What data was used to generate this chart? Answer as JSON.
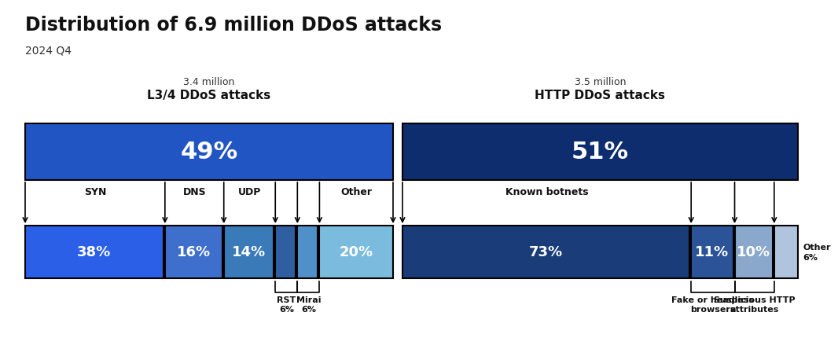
{
  "title": "Distribution of 6.9 million DDoS attacks",
  "subtitle": "2024 Q4",
  "background_color": "#ffffff",
  "left_label_top": "3.4 million",
  "left_label_bottom": "L3/4 DDoS attacks",
  "right_label_top": "3.5 million",
  "right_label_bottom": "HTTP DDoS attacks",
  "top_left_pct": "49%",
  "top_left_color": "#2155c4",
  "top_right_pct": "51%",
  "top_right_color": "#0d2d6e",
  "left_segments": [
    {
      "label": "SYN",
      "pct": "38%",
      "value": 38,
      "color": "#2b5fe8"
    },
    {
      "label": "DNS",
      "pct": "16%",
      "value": 16,
      "color": "#3f6fcc"
    },
    {
      "label": "UDP",
      "pct": "14%",
      "value": 14,
      "color": "#3a7ab8"
    },
    {
      "label": "RST",
      "pct": "",
      "value": 6,
      "color": "#2f5fa0"
    },
    {
      "label": "Mirai",
      "pct": "",
      "value": 6,
      "color": "#5090c8"
    },
    {
      "label": "Other",
      "pct": "20%",
      "value": 20,
      "color": "#7bbcde"
    }
  ],
  "right_segments": [
    {
      "label": "Known botnets",
      "pct": "73%",
      "value": 73,
      "color": "#1a3d7a"
    },
    {
      "label": "Fake or headless\nbrowsers",
      "pct": "11%",
      "value": 11,
      "color": "#2b5498"
    },
    {
      "label": "Suspicious HTTP\nattributes",
      "pct": "10%",
      "value": 10,
      "color": "#8aa8cc"
    },
    {
      "label": "Other\n6%",
      "pct": "",
      "value": 6,
      "color": "#b0c4de"
    }
  ]
}
